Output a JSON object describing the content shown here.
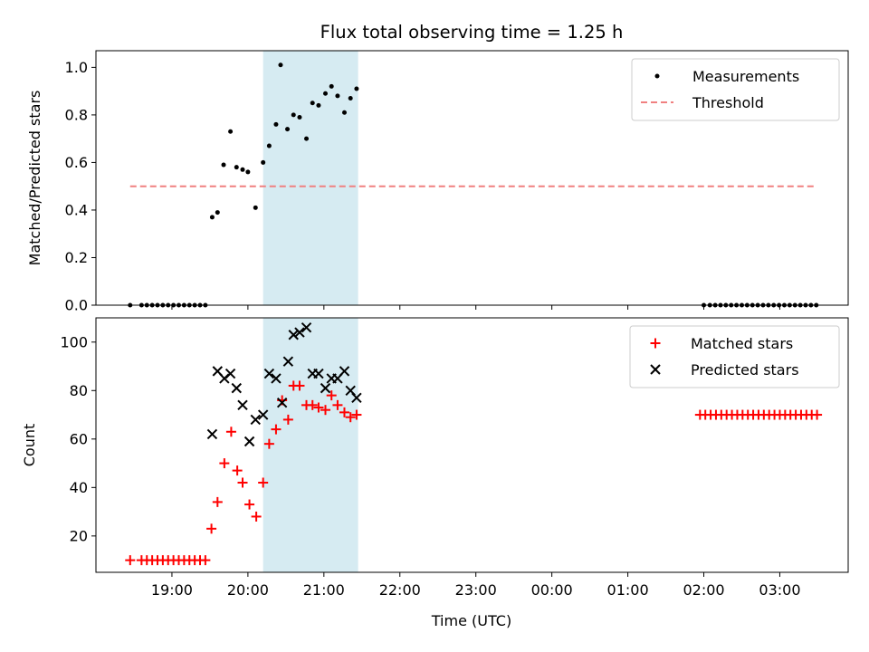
{
  "chart_data": {
    "title": "Flux total observing time = 1.25 h",
    "shared_x": {
      "label": "Time (UTC)",
      "unit": "hours since 00:00 UTC (values past midnight continue above 24)",
      "range": [
        18.0,
        27.9
      ],
      "ticks": [
        19,
        20,
        21,
        22,
        23,
        24,
        25,
        26,
        27
      ],
      "tick_labels": [
        "19:00",
        "20:00",
        "21:00",
        "22:00",
        "23:00",
        "00:00",
        "01:00",
        "02:00",
        "03:00"
      ]
    },
    "observing_window": {
      "start": 20.2,
      "end": 21.45,
      "color": "#add8e6"
    },
    "panels": [
      {
        "type": "scatter",
        "ylabel": "Matched/Predicted stars",
        "ylim": [
          0.0,
          1.07
        ],
        "yticks": [
          0.0,
          0.2,
          0.4,
          0.6,
          0.8,
          1.0
        ],
        "ytick_labels": [
          "0.0",
          "0.2",
          "0.4",
          "0.6",
          "0.8",
          "1.0"
        ],
        "legend": {
          "placement": "top-right"
        },
        "series": [
          {
            "name": "Measurements",
            "marker": "dot",
            "color": "#000000",
            "x": [
              18.45,
              18.6,
              18.67,
              18.74,
              18.81,
              18.88,
              18.95,
              19.02,
              19.09,
              19.16,
              19.23,
              19.3,
              19.37,
              19.44,
              19.53,
              19.6,
              19.68,
              19.77,
              19.85,
              19.93,
              20.0,
              20.1,
              20.2,
              20.28,
              20.37,
              20.43,
              20.52,
              20.6,
              20.68,
              20.77,
              20.85,
              20.93,
              21.02,
              21.1,
              21.18,
              21.27,
              21.35,
              21.43,
              26.0,
              26.08,
              26.15,
              26.22,
              26.29,
              26.36,
              26.43,
              26.5,
              26.57,
              26.64,
              26.71,
              26.78,
              26.85,
              26.92,
              26.99,
              27.06,
              27.13,
              27.2,
              27.27,
              27.34,
              27.41,
              27.48
            ],
            "y": [
              0.0,
              0.0,
              0.0,
              0.0,
              0.0,
              0.0,
              0.0,
              0.0,
              0.0,
              0.0,
              0.0,
              0.0,
              0.0,
              0.0,
              0.37,
              0.39,
              0.59,
              0.73,
              0.58,
              0.57,
              0.56,
              0.41,
              0.6,
              0.67,
              0.76,
              1.01,
              0.74,
              0.8,
              0.79,
              0.7,
              0.85,
              0.84,
              0.89,
              0.92,
              0.88,
              0.81,
              0.87,
              0.91,
              0.0,
              0.0,
              0.0,
              0.0,
              0.0,
              0.0,
              0.0,
              0.0,
              0.0,
              0.0,
              0.0,
              0.0,
              0.0,
              0.0,
              0.0,
              0.0,
              0.0,
              0.0,
              0.0,
              0.0,
              0.0,
              0.0
            ]
          },
          {
            "name": "Threshold",
            "marker": "dashed-line",
            "color": "#f08080",
            "x": [
              18.45,
              27.45
            ],
            "y": [
              0.5,
              0.5
            ]
          }
        ]
      },
      {
        "type": "scatter",
        "ylabel": "Count",
        "ylim": [
          5,
          110
        ],
        "yticks": [
          20,
          40,
          60,
          80,
          100
        ],
        "ytick_labels": [
          "20",
          "40",
          "60",
          "80",
          "100"
        ],
        "legend": {
          "placement": "top-right"
        },
        "series": [
          {
            "name": "Matched stars",
            "marker": "plus",
            "color": "#ff0000",
            "x": [
              18.45,
              18.6,
              18.67,
              18.74,
              18.81,
              18.88,
              18.95,
              19.02,
              19.09,
              19.16,
              19.23,
              19.3,
              19.37,
              19.44,
              19.52,
              19.6,
              19.69,
              19.78,
              19.86,
              19.93,
              20.02,
              20.11,
              20.2,
              20.28,
              20.37,
              20.45,
              20.53,
              20.6,
              20.68,
              20.77,
              20.85,
              20.93,
              21.02,
              21.1,
              21.18,
              21.27,
              21.35,
              21.43,
              25.95,
              26.02,
              26.09,
              26.16,
              26.23,
              26.3,
              26.37,
              26.44,
              26.51,
              26.58,
              26.65,
              26.72,
              26.79,
              26.86,
              26.93,
              27.0,
              27.07,
              27.14,
              27.21,
              27.28,
              27.35,
              27.42,
              27.49
            ],
            "y": [
              10,
              10,
              10,
              10,
              10,
              10,
              10,
              10,
              10,
              10,
              10,
              10,
              10,
              10,
              23,
              34,
              50,
              63,
              47,
              42,
              33,
              28,
              42,
              58,
              64,
              76,
              68,
              82,
              82,
              74,
              74,
              73,
              72,
              78,
              74,
              71,
              69,
              70,
              70,
              70,
              70,
              70,
              70,
              70,
              70,
              70,
              70,
              70,
              70,
              70,
              70,
              70,
              70,
              70,
              70,
              70,
              70,
              70,
              70,
              70,
              70
            ]
          },
          {
            "name": "Predicted stars",
            "marker": "x",
            "color": "#000000",
            "x": [
              19.53,
              19.6,
              19.69,
              19.77,
              19.85,
              19.93,
              20.02,
              20.1,
              20.2,
              20.28,
              20.37,
              20.45,
              20.53,
              20.6,
              20.68,
              20.77,
              20.85,
              20.93,
              21.02,
              21.1,
              21.18,
              21.27,
              21.35,
              21.43
            ],
            "y": [
              62,
              88,
              85,
              87,
              81,
              74,
              59,
              68,
              70,
              87,
              85,
              75,
              92,
              103,
              104,
              106,
              87,
              87,
              81,
              85,
              85,
              88,
              80,
              77
            ]
          }
        ]
      }
    ]
  }
}
